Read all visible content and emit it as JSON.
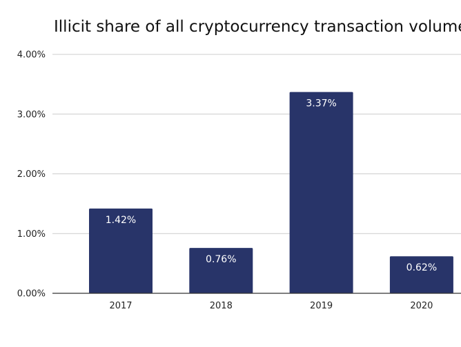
{
  "chart_data": {
    "type": "bar",
    "title": "Illicit share of all cryptocurrency transaction volume",
    "xlabel": "",
    "ylabel": "",
    "categories": [
      "2017",
      "2018",
      "2019",
      "2020"
    ],
    "values": [
      1.42,
      0.76,
      3.37,
      0.62
    ],
    "data_labels": [
      "1.42%",
      "0.76%",
      "3.37%",
      "0.62%"
    ],
    "ylim": [
      0,
      4
    ],
    "y_ticks": [
      0,
      1,
      2,
      3,
      4
    ],
    "y_tick_labels": [
      "0.00%",
      "1.00%",
      "2.00%",
      "3.00%",
      "4.00%"
    ],
    "grid": true,
    "legend": "none",
    "bar_color": "#283469",
    "grid_color": "#cccccc",
    "axis_color": "#333333"
  }
}
